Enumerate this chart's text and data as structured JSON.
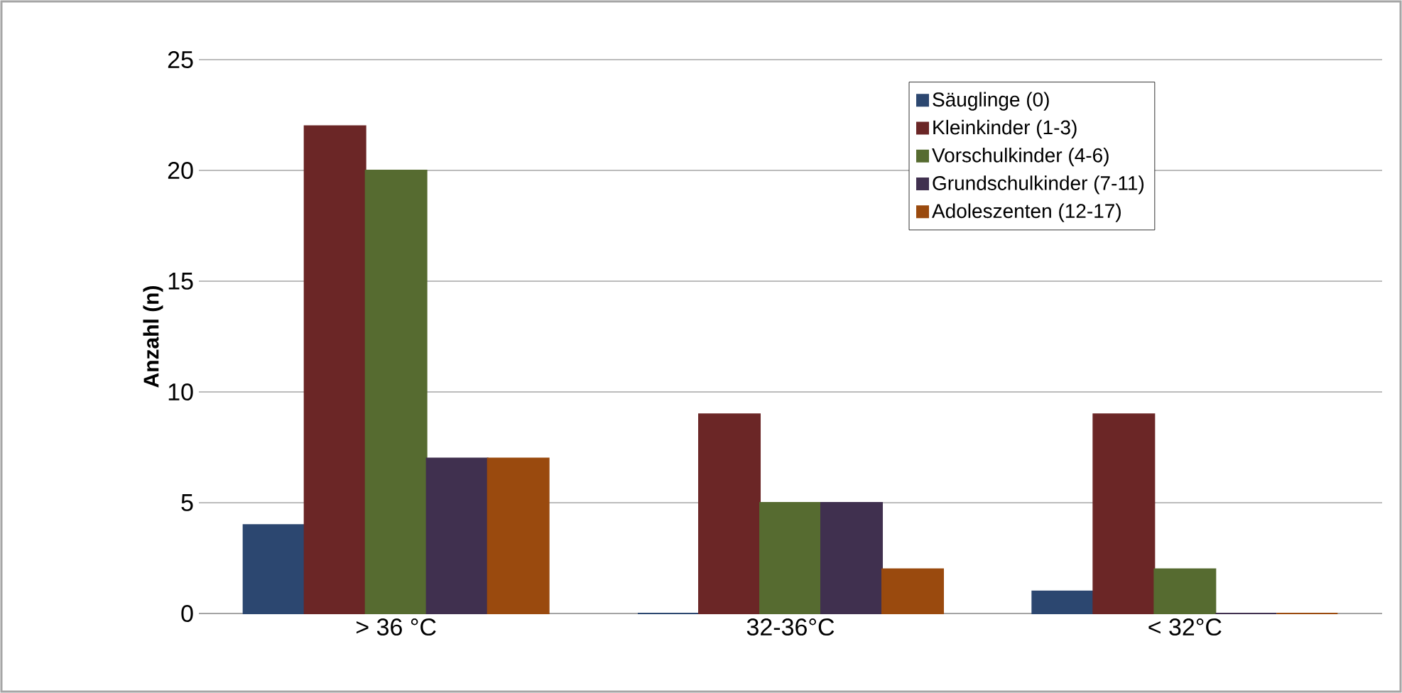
{
  "chart_data": {
    "type": "bar",
    "ylabel": "Anzahl (n)",
    "categories": [
      "> 36 °C",
      "32-36°C",
      "< 32°C"
    ],
    "series": [
      {
        "name": "Säuglinge (0)",
        "color": "#2c4770",
        "values": [
          4,
          0,
          1
        ]
      },
      {
        "name": "Kleinkinder (1-3)",
        "color": "#6b2626",
        "values": [
          22,
          9,
          9
        ]
      },
      {
        "name": "Vorschulkinder (4-6)",
        "color": "#566b30",
        "values": [
          20,
          5,
          2
        ]
      },
      {
        "name": "Grundschulkinder (7-11)",
        "color": "#40304f",
        "values": [
          7,
          5,
          0
        ]
      },
      {
        "name": "Adoleszenten (12-17)",
        "color": "#9a4a0e",
        "values": [
          7,
          2,
          0
        ]
      }
    ],
    "ylim": [
      0,
      25
    ],
    "yticks": [
      0,
      5,
      10,
      15,
      20,
      25
    ],
    "grid": "y",
    "legend": "top right"
  }
}
